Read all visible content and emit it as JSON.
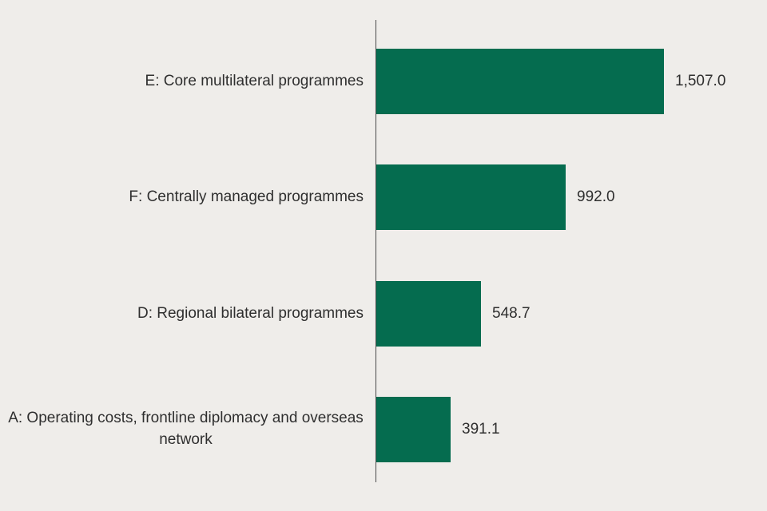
{
  "colors": {
    "background": "#efedea",
    "bar": "#056c4f",
    "text": "#2f2f2f",
    "axis": "#4a4a4a"
  },
  "chart_data": {
    "type": "bar",
    "orientation": "horizontal",
    "title": "",
    "xlabel": "",
    "ylabel": "",
    "grid": false,
    "legend": false,
    "xlim": [
      0,
      1630
    ],
    "categories": [
      "E: Core multilateral programmes",
      "F: Centrally managed programmes",
      "D: Regional bilateral programmes",
      "A: Operating costs, frontline diplomacy and overseas network"
    ],
    "values": [
      1507.0,
      992.0,
      548.7,
      391.1
    ],
    "value_labels": [
      "1,507.0",
      "992.0",
      "548.7",
      "391.1"
    ]
  }
}
